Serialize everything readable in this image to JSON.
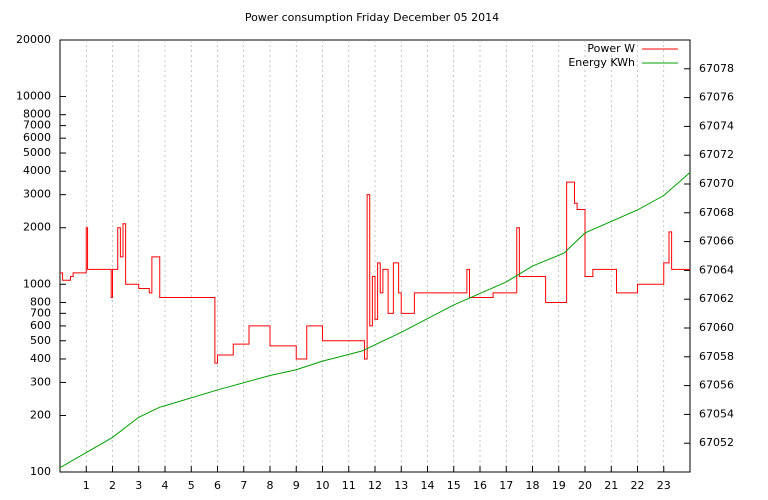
{
  "chart_data": {
    "type": "line",
    "title": "Power consumption Friday December 05 2014",
    "xlim": [
      0,
      24
    ],
    "xticks": [
      1,
      2,
      3,
      4,
      5,
      6,
      7,
      8,
      9,
      10,
      11,
      12,
      13,
      14,
      15,
      16,
      17,
      18,
      19,
      20,
      21,
      22,
      23
    ],
    "ylim": [
      100,
      20000
    ],
    "log_y": true,
    "yticks": [
      100,
      200,
      300,
      400,
      500,
      600,
      700,
      800,
      1000,
      2000,
      3000,
      4000,
      5000,
      6000,
      7000,
      8000,
      10000,
      20000
    ],
    "y2lim": [
      67050,
      67080
    ],
    "y2ticks": [
      67052,
      67054,
      67056,
      67058,
      67060,
      67062,
      67064,
      67066,
      67068,
      67070,
      67072,
      67074,
      67076,
      67078
    ],
    "grid": "x",
    "legend": "top-right",
    "line_style": "steps",
    "series": [
      {
        "name": "Power W",
        "color": "#ff0000",
        "axis": "y",
        "x": [
          0,
          0.1,
          0.4,
          0.5,
          1.0,
          1.05,
          1.3,
          1.9,
          1.95,
          2.0,
          2.2,
          2.3,
          2.4,
          2.5,
          3.0,
          3.4,
          3.5,
          3.8,
          5.8,
          5.9,
          6.0,
          6.6,
          7.2,
          8.0,
          9.0,
          9.4,
          10.0,
          11.3,
          11.6,
          11.7,
          11.8,
          11.9,
          12.0,
          12.1,
          12.2,
          12.3,
          12.5,
          12.7,
          12.9,
          13.0,
          13.5,
          14.5,
          15.5,
          15.6,
          16.5,
          17.4,
          17.5,
          17.6,
          18.5,
          19.1,
          19.3,
          19.6,
          19.7,
          20.0,
          20.3,
          21.2,
          22.0,
          22.8,
          23.0,
          23.2,
          23.3,
          24.0
        ],
        "values": [
          1150,
          1050,
          1100,
          1150,
          2000,
          1200,
          1200,
          1200,
          850,
          1200,
          2000,
          1400,
          2100,
          1000,
          950,
          900,
          1400,
          850,
          850,
          380,
          420,
          480,
          600,
          470,
          400,
          600,
          500,
          500,
          400,
          3000,
          600,
          1100,
          650,
          1300,
          900,
          1200,
          700,
          1300,
          900,
          700,
          900,
          900,
          1200,
          850,
          900,
          2000,
          1100,
          1100,
          800,
          800,
          3500,
          2700,
          2500,
          1100,
          1200,
          900,
          1000,
          1000,
          1300,
          1900,
          1200,
          1200
        ]
      },
      {
        "name": "Energy KWh",
        "color": "#00a000",
        "axis": "y2",
        "x": [
          0,
          2,
          3,
          3.8,
          4,
          6,
          8,
          9,
          10,
          11.5,
          13,
          15,
          17,
          18,
          19.2,
          20,
          22,
          23,
          24
        ],
        "values": [
          67050.3,
          67052.4,
          67053.8,
          67054.5,
          67054.6,
          67055.7,
          67056.7,
          67057.1,
          67057.7,
          67058.4,
          67059.7,
          67061.6,
          67063.2,
          67064.3,
          67065.2,
          67066.6,
          67068.2,
          67069.2,
          67070.8
        ]
      }
    ]
  }
}
